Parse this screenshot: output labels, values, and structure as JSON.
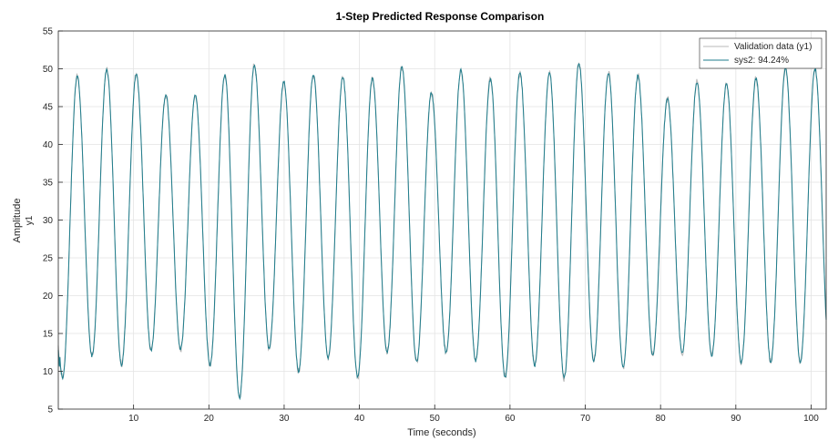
{
  "chart_data": {
    "type": "line",
    "title": "1-Step Predicted Response Comparison",
    "xlabel": "Time (seconds)",
    "ylabel": "Amplitude",
    "ylabel_sub": "y1",
    "xlim": [
      0,
      102
    ],
    "ylim": [
      5,
      55
    ],
    "xticks": [
      10,
      20,
      30,
      40,
      50,
      60,
      70,
      80,
      90,
      100
    ],
    "yticks": [
      5,
      10,
      15,
      20,
      25,
      30,
      35,
      40,
      45,
      50,
      55
    ],
    "grid": true,
    "legend_position": "top-right",
    "period_seconds": 3.92,
    "peaks": [
      49,
      49.9,
      49.3,
      46.6,
      46.5,
      49.2,
      50.5,
      48.3,
      49.2,
      48.9,
      48.7,
      50.2,
      46.8,
      49.8,
      48.6,
      49.5,
      49.5,
      50.7,
      49.5,
      49.1,
      46,
      48.2,
      48,
      48.7,
      50
    ],
    "troughs": [
      9,
      12,
      10.8,
      12.8,
      12.9,
      10.8,
      6.5,
      13,
      10,
      11.8,
      9.2,
      12.5,
      11.2,
      12.5,
      11.4,
      9.2,
      10.8,
      9.1,
      11.3,
      10.5,
      12.2,
      12.5,
      12.1,
      11.2
    ],
    "series": [
      {
        "name": "Validation data (y1)",
        "color": "#b8b8b8"
      },
      {
        "name": "sys2: 94.24%",
        "color": "#1f7d8c"
      }
    ]
  }
}
